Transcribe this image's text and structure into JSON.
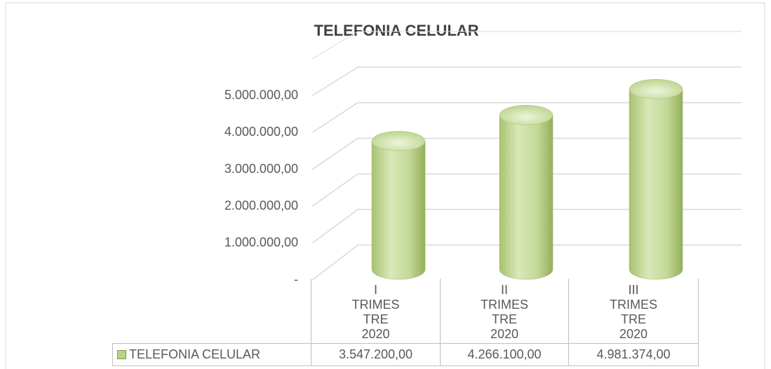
{
  "chart_data": {
    "type": "bar3d",
    "title": "TELEFONIA CELULAR",
    "categories": [
      "I TRIMESTRE 2020",
      "II TRIMESTRE 2020",
      "III TRIMESTRE 2020"
    ],
    "series": [
      {
        "name": "TELEFONIA CELULAR",
        "color": "#b9d28a",
        "values": [
          3547200,
          4266100,
          4981374
        ],
        "value_labels": [
          "3.547.200,00",
          "4.266.100,00",
          "4.981.374,00"
        ]
      }
    ],
    "ylim": [
      0,
      6000000
    ],
    "yticks": [
      {
        "value": 0,
        "label": "-"
      },
      {
        "value": 1000000,
        "label": "1.000.000,00"
      },
      {
        "value": 2000000,
        "label": "2.000.000,00"
      },
      {
        "value": 3000000,
        "label": "3.000.000,00"
      },
      {
        "value": 4000000,
        "label": "4.000.000,00"
      },
      {
        "value": 5000000,
        "label": "5.000.000,00"
      }
    ],
    "grid": true
  }
}
